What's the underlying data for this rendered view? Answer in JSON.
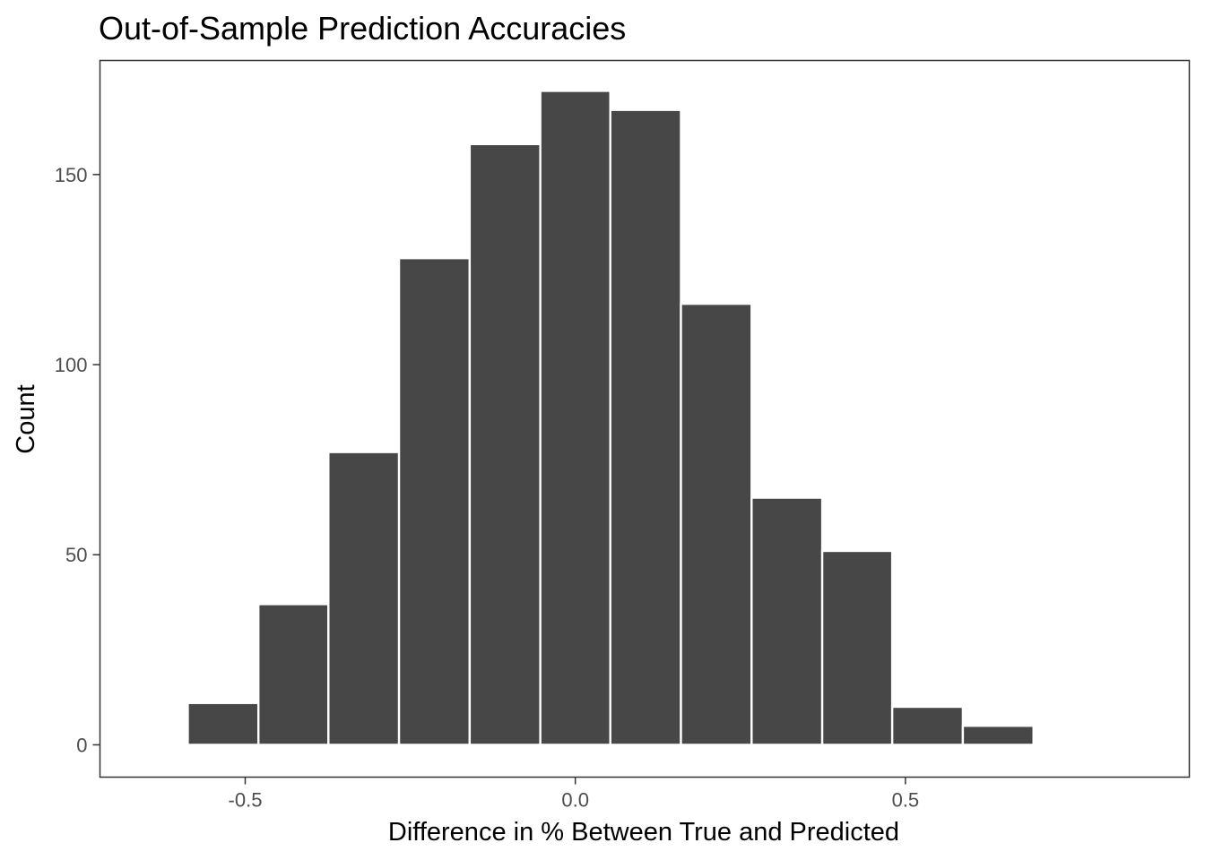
{
  "chart_data": {
    "type": "bar",
    "title": "Out-of-Sample Prediction Accuracies",
    "xlabel": "Difference in % Between True and Predicted",
    "ylabel": "Count",
    "xlim": [
      -0.72,
      0.93
    ],
    "ylim": [
      -8.5,
      180
    ],
    "x_ticks": [
      {
        "value": -0.5,
        "label": "-0.5"
      },
      {
        "value": 0.0,
        "label": "0.0"
      },
      {
        "value": 0.5,
        "label": "0.5"
      }
    ],
    "y_ticks": [
      {
        "value": 0,
        "label": "0"
      },
      {
        "value": 50,
        "label": "50"
      },
      {
        "value": 100,
        "label": "100"
      },
      {
        "value": 150,
        "label": "150"
      }
    ],
    "bin_width": 0.1068,
    "bins": [
      {
        "x0": -0.694,
        "x1": -0.587,
        "count": 0
      },
      {
        "x0": -0.587,
        "x1": -0.48,
        "count": 11
      },
      {
        "x0": -0.48,
        "x1": -0.374,
        "count": 37
      },
      {
        "x0": -0.374,
        "x1": -0.267,
        "count": 77
      },
      {
        "x0": -0.267,
        "x1": -0.16,
        "count": 128
      },
      {
        "x0": -0.16,
        "x1": -0.053,
        "count": 158
      },
      {
        "x0": -0.053,
        "x1": 0.053,
        "count": 172
      },
      {
        "x0": 0.053,
        "x1": 0.16,
        "count": 167
      },
      {
        "x0": 0.16,
        "x1": 0.267,
        "count": 116
      },
      {
        "x0": 0.267,
        "x1": 0.374,
        "count": 65
      },
      {
        "x0": 0.374,
        "x1": 0.48,
        "count": 51
      },
      {
        "x0": 0.48,
        "x1": 0.587,
        "count": 10
      },
      {
        "x0": 0.587,
        "x1": 0.694,
        "count": 5
      },
      {
        "x0": 0.694,
        "x1": 0.801,
        "count": 0
      },
      {
        "x0": 0.801,
        "x1": 0.907,
        "count": 0
      }
    ],
    "bar_color": "#474747",
    "bar_outline_color": "#ffffff",
    "panel_border_color": "#333333",
    "grid": false,
    "legend": "none"
  }
}
